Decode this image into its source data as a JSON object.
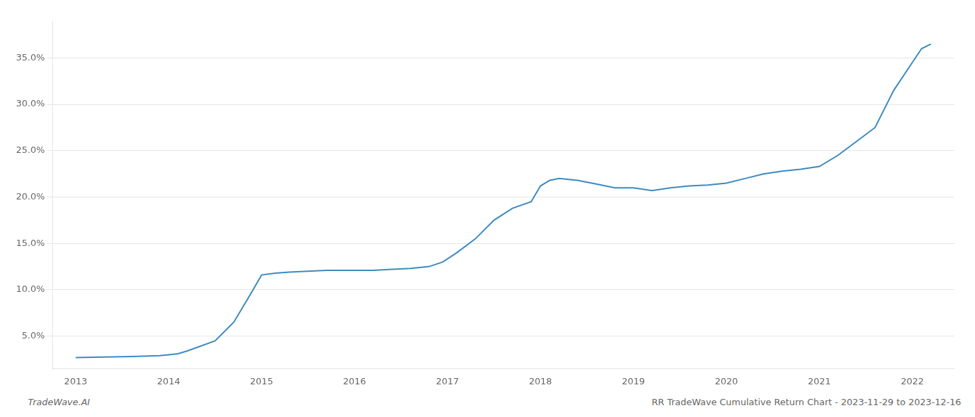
{
  "chart_data": {
    "type": "line",
    "x": [
      2013.0,
      2013.3,
      2013.6,
      2013.9,
      2014.0,
      2014.1,
      2014.2,
      2014.5,
      2014.7,
      2014.85,
      2015.0,
      2015.15,
      2015.3,
      2015.5,
      2015.7,
      2015.9,
      2016.0,
      2016.2,
      2016.4,
      2016.6,
      2016.8,
      2016.95,
      2017.1,
      2017.3,
      2017.5,
      2017.7,
      2017.9,
      2018.0,
      2018.1,
      2018.2,
      2018.4,
      2018.6,
      2018.8,
      2019.0,
      2019.2,
      2019.4,
      2019.6,
      2019.8,
      2020.0,
      2020.2,
      2020.4,
      2020.6,
      2020.8,
      2021.0,
      2021.2,
      2021.4,
      2021.6,
      2021.8,
      2022.0,
      2022.1,
      2022.2
    ],
    "values": [
      2.7,
      2.75,
      2.8,
      2.9,
      3.0,
      3.1,
      3.4,
      4.5,
      6.5,
      9.0,
      11.6,
      11.8,
      11.9,
      12.0,
      12.1,
      12.1,
      12.1,
      12.1,
      12.2,
      12.3,
      12.5,
      13.0,
      14.0,
      15.5,
      17.5,
      18.8,
      19.5,
      21.2,
      21.8,
      22.0,
      21.8,
      21.4,
      21.0,
      21.0,
      20.7,
      21.0,
      21.2,
      21.3,
      21.5,
      22.0,
      22.5,
      22.8,
      23.0,
      23.3,
      24.5,
      26.0,
      27.5,
      31.5,
      34.5,
      36.0,
      36.5
    ],
    "color": "#3a8abf",
    "xlim": [
      2012.75,
      2022.45
    ],
    "xticks": [
      2013,
      2014,
      2015,
      2016,
      2017,
      2018,
      2019,
      2020,
      2021,
      2022
    ],
    "ylim": [
      1.5,
      39.0
    ],
    "yticks": [
      {
        "value": 5.0,
        "label": "5.0%"
      },
      {
        "value": 10.0,
        "label": "10.0%"
      },
      {
        "value": 15.0,
        "label": "15.0%"
      },
      {
        "value": 20.0,
        "label": "20.0%"
      },
      {
        "value": 25.0,
        "label": "25.0%"
      },
      {
        "value": 30.0,
        "label": "30.0%"
      },
      {
        "value": 35.0,
        "label": "35.0%"
      }
    ],
    "grid": "y",
    "annotations": [
      "TradeWave.AI",
      "RR TradeWave Cumulative Return Chart - 2023-11-29 to 2023-12-16"
    ]
  }
}
